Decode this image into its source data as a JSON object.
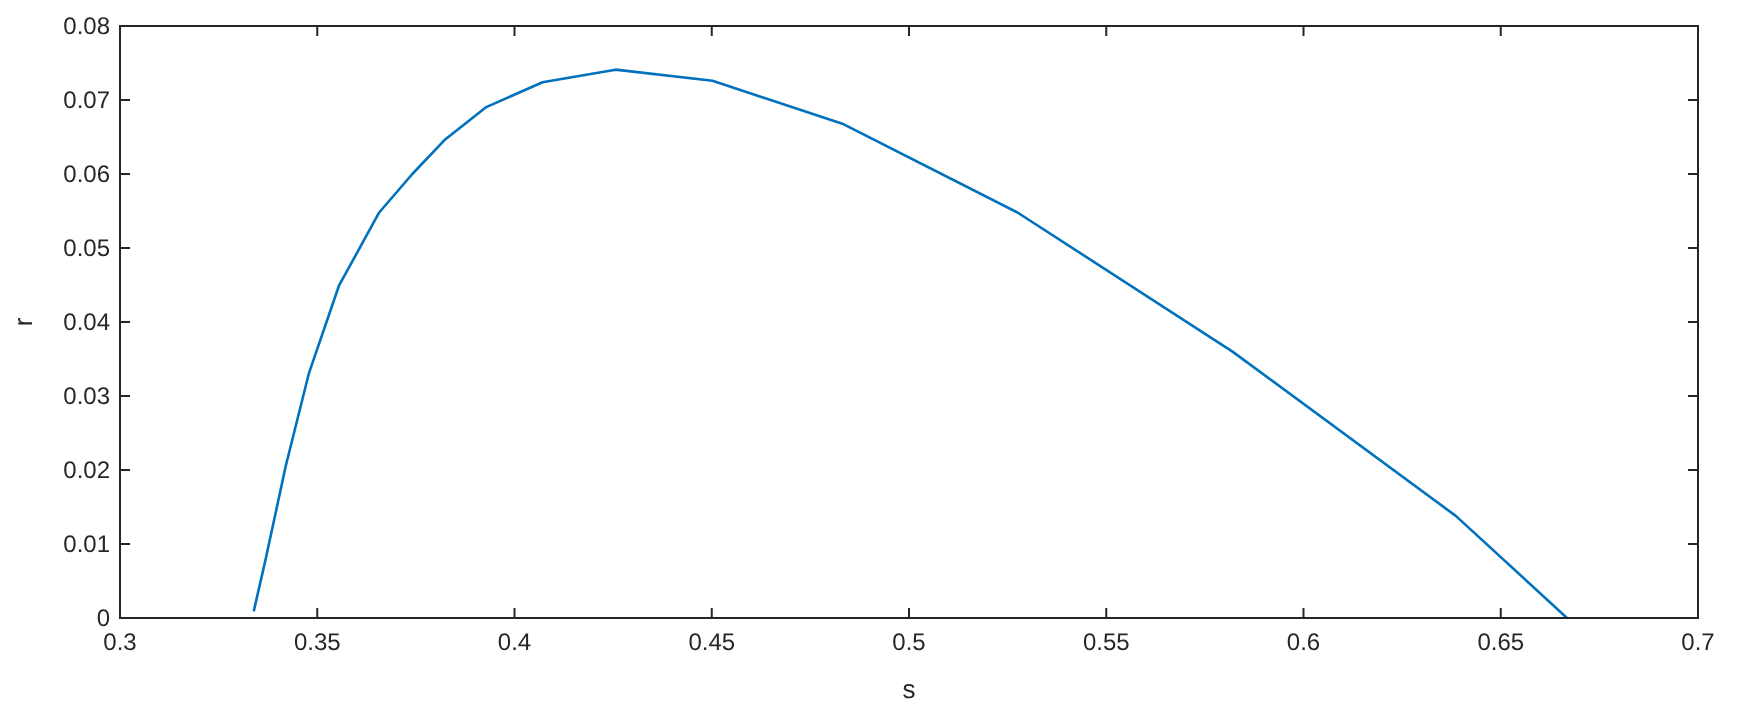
{
  "chart_data": {
    "type": "line",
    "xlabel": "s",
    "ylabel": "r",
    "xlim": [
      0.3,
      0.7
    ],
    "ylim": [
      0,
      0.08
    ],
    "xticks": [
      0.3,
      0.35,
      0.4,
      0.45,
      0.5,
      0.55,
      0.6,
      0.65,
      0.7
    ],
    "yticks": [
      0,
      0.01,
      0.02,
      0.03,
      0.04,
      0.05,
      0.06,
      0.07,
      0.08
    ],
    "grid": false,
    "marker": "none",
    "line_style": "solid",
    "series": [
      {
        "color": "#0072bd",
        "x": [
          0.3339,
          0.3369,
          0.342,
          0.3479,
          0.3555,
          0.3657,
          0.3741,
          0.3825,
          0.3927,
          0.4071,
          0.4256,
          0.4502,
          0.4831,
          0.5275,
          0.582,
          0.6386,
          0.6668
        ],
        "values": [
          0.0009,
          0.0079,
          0.0205,
          0.0331,
          0.0449,
          0.0548,
          0.06,
          0.0647,
          0.069,
          0.0724,
          0.0741,
          0.0726,
          0.0668,
          0.0548,
          0.036,
          0.0138,
          0
        ]
      }
    ]
  }
}
